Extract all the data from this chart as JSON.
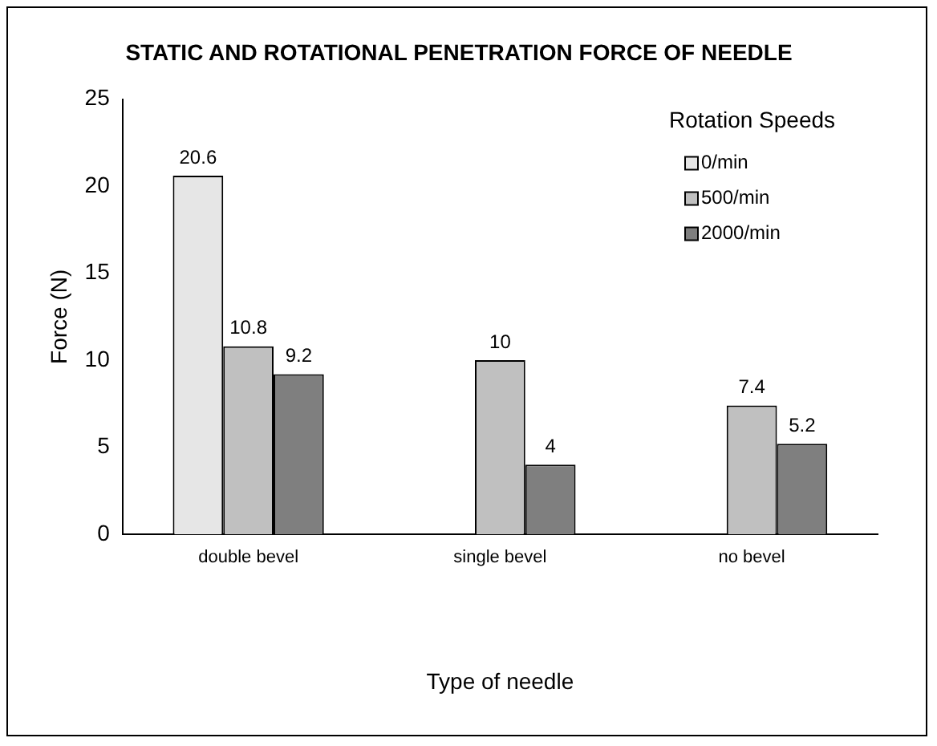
{
  "chart_data": {
    "type": "bar",
    "title": "STATIC AND ROTATIONAL PENETRATION FORCE OF NEEDLE",
    "xlabel": "Type of needle",
    "ylabel": "Force (N)",
    "legend_title": "Rotation Speeds",
    "categories": [
      "double bevel",
      "single bevel",
      "no bevel"
    ],
    "series": [
      {
        "name": "0/min",
        "color": "#e6e6e6",
        "values": [
          20.6,
          null,
          null
        ]
      },
      {
        "name": "500/min",
        "color": "#c0c0c0",
        "values": [
          10.8,
          10,
          7.4
        ]
      },
      {
        "name": "2000/min",
        "color": "#7f7f7f",
        "values": [
          9.2,
          4,
          5.2
        ]
      }
    ],
    "ylim": [
      0,
      25
    ],
    "yticks": [
      0,
      5,
      10,
      15,
      20,
      25
    ],
    "grid": false,
    "legend": "top right",
    "data_labels": true
  }
}
